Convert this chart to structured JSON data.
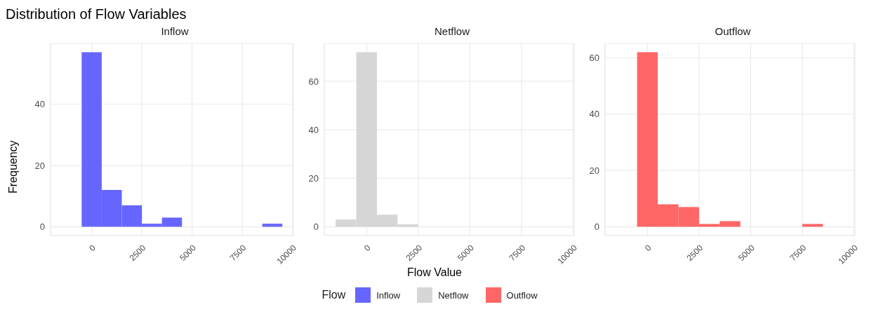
{
  "chart_data": [
    {
      "type": "histogram",
      "title": "Distribution of Flow Variables",
      "subtitle": "Inflow",
      "ylabel": "Frequency",
      "legend_title": "Flow",
      "legend": "bottom",
      "grid": true,
      "bins": [
        -500,
        500,
        1500,
        2500,
        3500,
        4500,
        5500,
        6500,
        7500,
        8500,
        9500
      ],
      "series": [
        {
          "name": "Inflow",
          "color": "#6666ff",
          "values": [
            57,
            12,
            7,
            1,
            3,
            0,
            0,
            0,
            0,
            1
          ]
        }
      ],
      "xlim": [
        -2050,
        10050
      ],
      "xticks": [
        0,
        2500,
        5000,
        7500,
        10000
      ],
      "ylim": [
        -2.85,
        59.85
      ],
      "yticks": [
        0,
        20,
        40
      ]
    },
    {
      "type": "histogram",
      "subtitle": "Netflow",
      "xlabel": "Flow Value",
      "legend": "bottom",
      "grid": true,
      "bins": [
        -1500,
        -500,
        500,
        1500,
        2500
      ],
      "series": [
        {
          "name": "Netflow",
          "color": "#d6d6d6",
          "values": [
            3,
            72,
            5,
            1
          ]
        }
      ],
      "xlim": [
        -2050,
        10050
      ],
      "xticks": [
        0,
        2500,
        5000,
        7500,
        10000
      ],
      "ylim": [
        -3.6,
        75.6
      ],
      "yticks": [
        0,
        20,
        40,
        60
      ]
    },
    {
      "type": "histogram",
      "subtitle": "Outflow",
      "legend": "bottom",
      "grid": true,
      "bins": [
        -500,
        500,
        1500,
        2500,
        3500,
        4500,
        5500,
        6500,
        7500,
        8500
      ],
      "series": [
        {
          "name": "Outflow",
          "color": "#ff6666",
          "values": [
            62,
            8,
            7,
            1,
            2,
            0,
            0,
            0,
            1
          ]
        }
      ],
      "xlim": [
        -2050,
        10050
      ],
      "xticks": [
        0,
        2500,
        5000,
        7500,
        10000
      ],
      "ylim": [
        -3.1,
        65.1
      ],
      "yticks": [
        0,
        20,
        40,
        60
      ]
    }
  ]
}
